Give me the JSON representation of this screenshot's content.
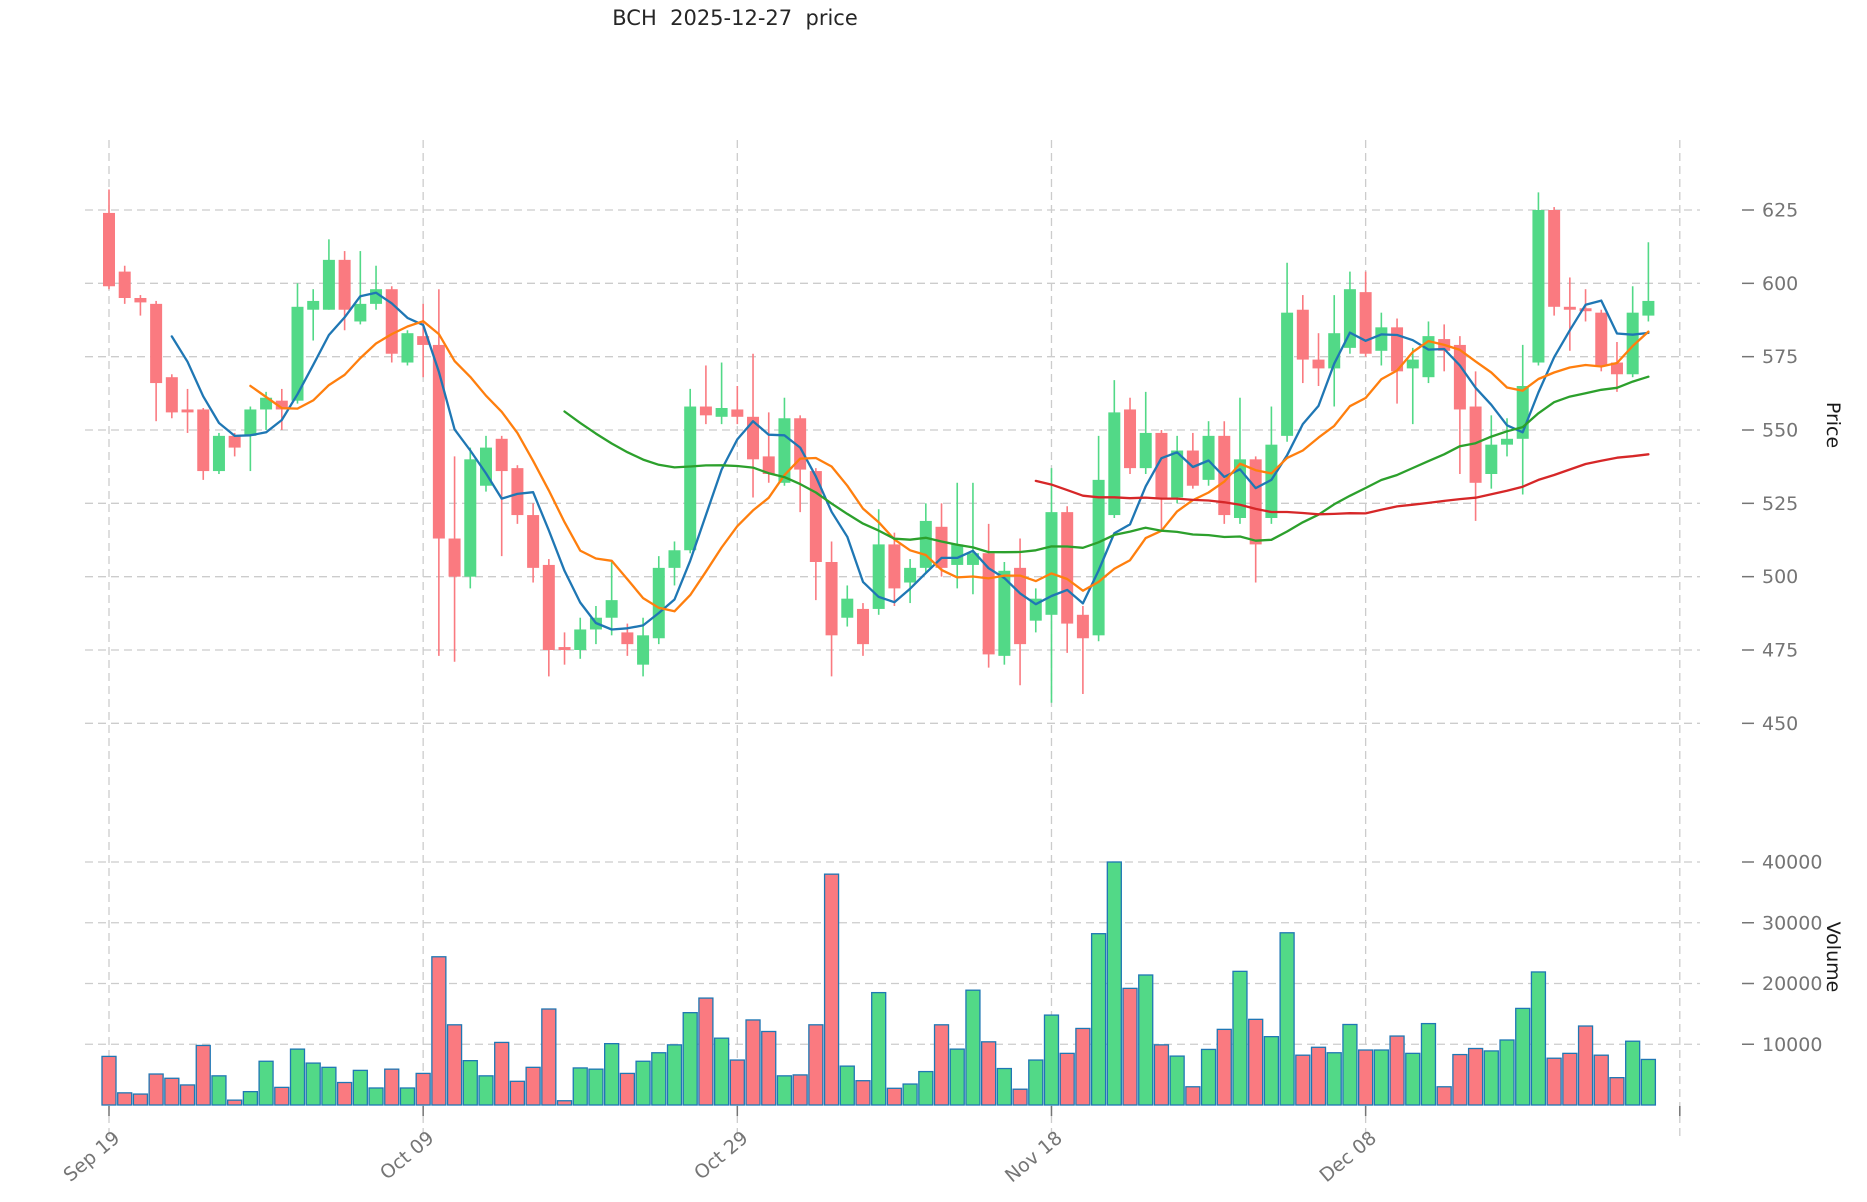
{
  "title": "BCH  2025-12-27  price",
  "chart_data": {
    "type": "candlestick",
    "title": "BCH  2025-12-27  price",
    "subtitle": "",
    "legend": "none",
    "grid": "dashed",
    "price_axis": {
      "label": "Price",
      "side": "right",
      "ticks": [
        625,
        600,
        575,
        550,
        525,
        500,
        475,
        450
      ],
      "ylim": [
        440,
        645
      ]
    },
    "volume_axis": {
      "label": "Volume",
      "side": "right",
      "ticks": [
        40000,
        30000,
        20000,
        10000
      ],
      "ylim": [
        0,
        44000
      ]
    },
    "x_tick_labels": [
      {
        "index": 0,
        "label": "Sep 19"
      },
      {
        "index": 20,
        "label": "Oct 09"
      },
      {
        "index": 40,
        "label": "Oct 29"
      },
      {
        "index": 60,
        "label": "Nov 18"
      },
      {
        "index": 80,
        "label": "Dec 08"
      }
    ],
    "extra_vertical_gridline_index": 100,
    "ma_overlays": [
      {
        "window": 5,
        "color": "#1f77b4"
      },
      {
        "window": 10,
        "color": "#ff7f0e"
      },
      {
        "window": 30,
        "color": "#2ca02c"
      },
      {
        "window": 60,
        "color": "#d62728"
      }
    ],
    "colors": {
      "up": "#52d987",
      "down": "#fa7a80",
      "volume_edge": "#1f77b4",
      "grid": "#cccccc",
      "tick_text": "#757575",
      "tick_mark": "#757575",
      "axis_label": "#1a1a1a",
      "title_text": "#262626"
    },
    "candles_ohlc": [
      [
        624,
        632,
        598,
        599
      ],
      [
        604,
        606,
        593,
        595
      ],
      [
        595,
        596,
        589,
        593.5
      ],
      [
        593,
        594,
        553,
        566
      ],
      [
        568,
        569,
        554,
        556
      ],
      [
        557,
        564,
        549,
        556
      ],
      [
        557,
        557.5,
        533,
        536
      ],
      [
        536,
        549,
        535,
        548
      ],
      [
        548,
        549,
        541,
        544
      ],
      [
        548,
        558,
        536,
        557
      ],
      [
        557,
        563,
        550,
        561
      ],
      [
        560,
        564,
        550,
        557
      ],
      [
        560,
        600,
        559,
        592
      ],
      [
        591,
        598,
        580.5,
        594
      ],
      [
        591,
        615,
        591,
        608
      ],
      [
        608,
        611,
        584,
        591
      ],
      [
        587,
        611,
        586,
        593
      ],
      [
        593,
        606,
        591,
        598
      ],
      [
        598,
        599,
        573,
        576
      ],
      [
        573,
        584,
        572,
        583
      ],
      [
        582,
        593,
        568,
        579
      ],
      [
        579,
        598,
        473,
        513
      ],
      [
        513,
        541,
        471,
        500
      ],
      [
        500,
        544,
        496,
        540
      ],
      [
        531,
        548,
        529,
        544
      ],
      [
        547,
        548,
        507,
        536
      ],
      [
        537,
        538,
        518,
        521
      ],
      [
        521,
        525,
        498,
        503
      ],
      [
        504,
        506,
        466,
        475
      ],
      [
        476,
        481,
        470,
        475
      ],
      [
        475,
        486,
        472,
        482
      ],
      [
        482,
        490,
        477,
        486
      ],
      [
        486,
        505,
        480,
        492
      ],
      [
        481,
        484,
        473,
        477
      ],
      [
        470,
        486,
        466,
        480
      ],
      [
        479,
        507,
        477,
        503
      ],
      [
        503,
        512,
        497,
        509
      ],
      [
        509,
        564,
        508,
        558
      ],
      [
        558,
        572,
        552,
        555
      ],
      [
        554.5,
        573,
        552,
        557.5
      ],
      [
        557,
        565,
        552,
        554.5
      ],
      [
        554.5,
        576,
        527,
        540
      ],
      [
        541,
        556,
        532,
        535
      ],
      [
        532,
        561,
        531,
        554
      ],
      [
        554,
        555,
        522,
        536.5
      ],
      [
        536,
        537,
        492,
        505
      ],
      [
        505,
        512,
        466,
        480
      ],
      [
        486,
        497,
        483,
        492.5
      ],
      [
        489,
        491,
        473,
        477
      ],
      [
        489,
        523,
        487,
        511
      ],
      [
        511,
        515,
        490,
        496
      ],
      [
        498,
        506,
        491,
        503
      ],
      [
        503,
        525,
        501,
        519
      ],
      [
        517,
        525,
        500,
        503
      ],
      [
        504,
        532,
        496,
        511
      ],
      [
        504,
        532,
        494,
        508
      ],
      [
        508,
        518,
        469,
        473.5
      ],
      [
        473,
        505,
        470,
        502
      ],
      [
        503,
        513,
        463,
        477
      ],
      [
        485,
        496,
        481,
        492.5
      ],
      [
        487,
        537,
        457,
        522
      ],
      [
        522,
        524,
        474,
        484
      ],
      [
        487,
        490,
        460,
        479
      ],
      [
        480,
        548,
        478,
        533
      ],
      [
        521,
        567,
        520,
        556
      ],
      [
        557,
        561,
        535,
        537
      ],
      [
        537,
        563,
        535,
        549
      ],
      [
        549,
        550,
        516,
        527
      ],
      [
        527,
        548,
        525,
        543
      ],
      [
        543,
        549,
        530,
        531
      ],
      [
        533,
        553,
        531,
        548
      ],
      [
        548,
        553,
        518,
        521
      ],
      [
        520,
        561,
        518,
        540
      ],
      [
        540,
        541,
        498,
        511
      ],
      [
        520,
        558,
        518,
        545
      ],
      [
        548,
        607,
        546,
        590
      ],
      [
        591,
        596,
        566,
        574
      ],
      [
        574,
        583,
        565,
        571
      ],
      [
        571,
        596,
        558,
        583
      ],
      [
        578,
        604,
        576,
        598
      ],
      [
        597,
        604,
        575,
        576
      ],
      [
        577,
        590,
        572,
        585
      ],
      [
        585,
        588,
        559,
        570
      ],
      [
        571,
        578,
        552,
        574
      ],
      [
        568,
        587,
        566,
        582
      ],
      [
        581,
        586,
        570,
        577
      ],
      [
        579,
        582,
        535,
        557
      ],
      [
        558,
        570,
        519,
        532
      ],
      [
        535,
        555,
        530,
        545
      ],
      [
        545,
        554,
        541,
        547
      ],
      [
        547,
        579,
        528,
        565
      ],
      [
        573,
        631,
        572,
        625
      ],
      [
        625,
        626,
        589,
        592
      ],
      [
        592,
        602,
        577,
        591
      ],
      [
        591.5,
        598,
        587,
        590.5
      ],
      [
        590,
        591,
        570,
        572
      ],
      [
        573,
        580,
        563,
        569
      ],
      [
        569,
        599,
        568,
        590
      ],
      [
        589,
        614,
        587,
        594
      ]
    ],
    "volumes": [
      8000,
      2000,
      1800,
      5100,
      4400,
      3300,
      9800,
      4800,
      800,
      2200,
      7200,
      2900,
      9200,
      6900,
      6200,
      3700,
      5700,
      2800,
      5900,
      2800,
      5200,
      24400,
      13200,
      7300,
      4800,
      10300,
      3900,
      6200,
      15800,
      700,
      6100,
      5900,
      10100,
      5200,
      7200,
      8600,
      9900,
      15200,
      17600,
      11000,
      7400,
      14000,
      12100,
      4800,
      4950,
      13200,
      38000,
      6400,
      4000,
      18500,
      2750,
      3450,
      5500,
      13200,
      9200,
      18900,
      10400,
      6000,
      2600,
      7400,
      14800,
      8500,
      12600,
      28200,
      40000,
      19200,
      21400,
      9900,
      8050,
      3000,
      9150,
      12450,
      22000,
      14100,
      11250,
      28350,
      8200,
      9500,
      8600,
      13250,
      9050,
      9050,
      11350,
      8500,
      13400,
      3000,
      8300,
      9300,
      8900,
      10700,
      15900,
      21900,
      7700,
      8500,
      13000,
      8200,
      4500,
      10500,
      7500
    ]
  }
}
